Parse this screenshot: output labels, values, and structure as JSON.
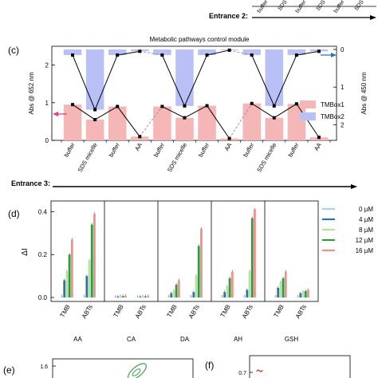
{
  "top_strip": {
    "entrance_label": "Entrance 2:",
    "labels": [
      "buffer",
      "SDS",
      "buffer",
      "SDS",
      "buffer",
      "SDS"
    ]
  },
  "panel_c": {
    "letter": "(c)",
    "title": "Metabolic pathways control module",
    "ylabel_left": "Abs @ 652 nm",
    "ylabel_right": "Abs @ 450 nm",
    "left_ticks": [
      "0",
      "1",
      "2"
    ],
    "right_ticks": [
      "0",
      "1",
      "2"
    ],
    "legend": {
      "tmb_ox1": "TMBox1",
      "tmb_ox2": "TMBox2"
    },
    "entrance_label": "Entrance 3:"
  },
  "panel_d": {
    "letter": "(d)",
    "ylabel": "ΔI",
    "y_ticks": [
      "0.0",
      "0.2",
      "0.4"
    ],
    "legend": [
      "0 µM",
      "4 µM",
      "8 µM",
      "12 µM",
      "16 µM"
    ]
  },
  "panel_e": {
    "letter": "(e)",
    "tick": "1.6"
  },
  "panel_f": {
    "letter": "(f)",
    "tick": "0.7"
  },
  "colors": {
    "pink_bar": "#f4b6b6",
    "blue_bar": "#b9c0f5",
    "c_0": "#a7d3ea",
    "c_4": "#2f72b4",
    "c_8": "#b4e39b",
    "c_12": "#2f9a3e",
    "c_16": "#f0908e"
  },
  "chart_data": [
    {
      "type": "bar",
      "panel": "c",
      "title": "Metabolic pathways control module",
      "categories": [
        "buffer",
        "SDS micelle",
        "buffer",
        "AA",
        "buffer",
        "SDS micelle",
        "buffer",
        "AA",
        "buffer",
        "SDS micelle",
        "buffer",
        "AA"
      ],
      "ylabel": "Abs @ 652 nm",
      "ylim": [
        0,
        2.5
      ],
      "series": [
        {
          "name": "TMBox1",
          "axis": "left",
          "values": [
            0.95,
            0.55,
            0.9,
            0.1,
            0.9,
            0.6,
            0.92,
            0.05,
            0.98,
            0.6,
            0.97,
            0.08
          ]
        },
        {
          "name": "TMBox2",
          "axis": "right",
          "direction": "down",
          "ylabel": "Abs @ 450 nm",
          "ylim": [
            0,
            2.5
          ],
          "values": [
            0.15,
            1.6,
            0.15,
            0.05,
            0.15,
            1.5,
            0.15,
            0.02,
            0.15,
            1.5,
            0.15,
            0.05
          ]
        }
      ],
      "legend_position": "right"
    },
    {
      "type": "bar",
      "panel": "d",
      "groups": [
        "AA",
        "CA",
        "DA",
        "AH",
        "GSH"
      ],
      "categories": [
        "TMB",
        "ABTs"
      ],
      "ylabel": "ΔI",
      "ylim": [
        0,
        0.45
      ],
      "series": [
        {
          "name": "0 µM",
          "values": [
            [
              0.005,
              0.005
            ],
            [
              0.002,
              0.002
            ],
            [
              0.004,
              0.004
            ],
            [
              0.004,
              0.004
            ],
            [
              0.004,
              0.004
            ]
          ]
        },
        {
          "name": "4 µM",
          "values": [
            [
              0.08,
              0.1
            ],
            [
              0.004,
              0.004
            ],
            [
              0.02,
              0.025
            ],
            [
              0.025,
              0.035
            ],
            [
              0.045,
              0.02
            ]
          ]
        },
        {
          "name": "8 µM",
          "values": [
            [
              0.12,
              0.17
            ],
            [
              0.006,
              0.004
            ],
            [
              0.03,
              0.1
            ],
            [
              0.05,
              0.12
            ],
            [
              0.07,
              0.025
            ]
          ]
        },
        {
          "name": "12 µM",
          "values": [
            [
              0.2,
              0.34
            ],
            [
              0.006,
              0.005
            ],
            [
              0.06,
              0.24
            ],
            [
              0.09,
              0.37
            ],
            [
              0.09,
              0.03
            ]
          ]
        },
        {
          "name": "16 µM",
          "values": [
            [
              0.27,
              0.39
            ],
            [
              0.008,
              0.006
            ],
            [
              0.08,
              0.32
            ],
            [
              0.12,
              0.41
            ],
            [
              0.12,
              0.035
            ]
          ]
        }
      ],
      "legend_position": "right"
    }
  ]
}
